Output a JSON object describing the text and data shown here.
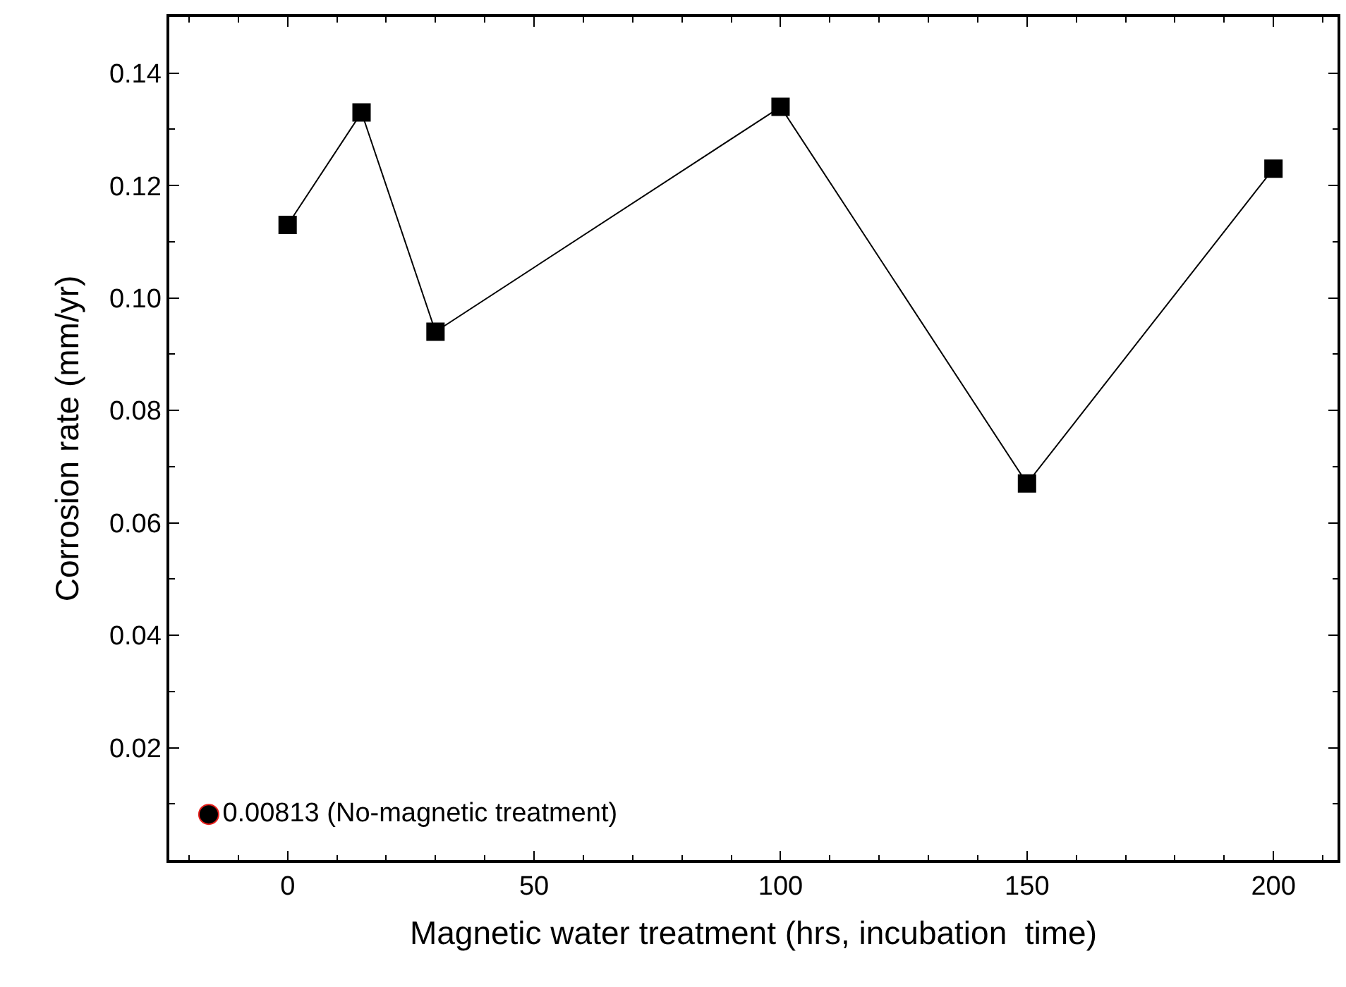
{
  "chart_data": {
    "type": "line",
    "xlabel": "Magnetic water treatment (hrs, incubation  time)",
    "ylabel": "Corrosion rate (mm/yr)",
    "xlim": [
      -24,
      213
    ],
    "xticks": [
      0,
      50,
      100,
      150,
      200
    ],
    "ylim": [
      0,
      0.15
    ],
    "yticks": [
      {
        "value": 0.02,
        "label": "0.02"
      },
      {
        "value": 0.04,
        "label": "0.04"
      },
      {
        "value": 0.06,
        "label": "0.06"
      },
      {
        "value": 0.08,
        "label": "0.08"
      },
      {
        "value": 0.1,
        "label": "0.10"
      },
      {
        "value": 0.12,
        "label": "0.12"
      },
      {
        "value": 0.14,
        "label": "0.14"
      }
    ],
    "legend": false,
    "marker": "square",
    "line_style": "solid",
    "series": [
      {
        "color": "#000000",
        "x": [
          0,
          15,
          30,
          100,
          150,
          200
        ],
        "values": [
          0.113,
          0.133,
          0.094,
          0.134,
          0.067,
          0.123
        ]
      },
      {
        "type": "scatter",
        "name": "0.00813 (No-magnetic treatment)",
        "color": "#000000",
        "marker": "circle",
        "x": [
          -16
        ],
        "values": [
          0.00813
        ]
      }
    ]
  }
}
